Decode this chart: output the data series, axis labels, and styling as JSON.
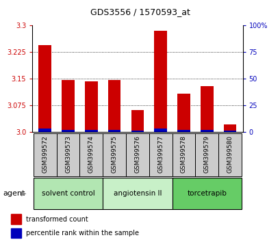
{
  "title": "GDS3556 / 1570593_at",
  "samples": [
    "GSM399572",
    "GSM399573",
    "GSM399574",
    "GSM399575",
    "GSM399576",
    "GSM399577",
    "GSM399578",
    "GSM399579",
    "GSM399580"
  ],
  "red_values": [
    3.245,
    3.147,
    3.143,
    3.147,
    3.062,
    3.285,
    3.107,
    3.128,
    3.022
  ],
  "blue_percentiles": [
    3,
    2,
    2,
    2,
    1,
    3,
    2,
    2,
    1
  ],
  "y_min": 3.0,
  "y_max": 3.3,
  "y_ticks_left": [
    3.0,
    3.075,
    3.15,
    3.225,
    3.3
  ],
  "y_ticks_right": [
    0,
    25,
    50,
    75,
    100
  ],
  "right_axis_labels": [
    "0",
    "25",
    "50",
    "75",
    "100%"
  ],
  "groups": [
    {
      "label": "solvent control",
      "start": 0,
      "end": 3,
      "color": "#b2e6b2"
    },
    {
      "label": "angiotensin II",
      "start": 3,
      "end": 6,
      "color": "#c8f0c8"
    },
    {
      "label": "torcetrapib",
      "start": 6,
      "end": 9,
      "color": "#66cc66"
    }
  ],
  "bar_width": 0.55,
  "red_color": "#cc0000",
  "blue_color": "#0000bb",
  "agent_label": "agent",
  "legend_red": "transformed count",
  "legend_blue": "percentile rank within the sample",
  "left_axis_color": "#cc0000",
  "right_axis_color": "#0000bb",
  "title_fontsize": 9,
  "tick_fontsize": 7,
  "label_fontsize": 6.5,
  "group_fontsize": 7.5,
  "legend_fontsize": 7
}
